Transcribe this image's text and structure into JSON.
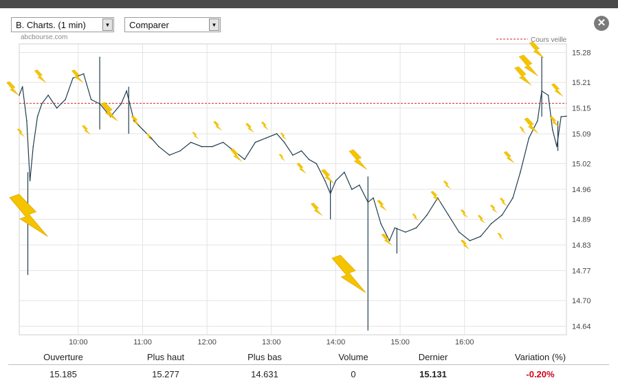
{
  "toolbar": {
    "chart_select_label": "B. Charts. (1 min)",
    "compare_select_label": "Comparer",
    "arrow_glyph": "▼",
    "close_glyph": "✕"
  },
  "site_label": "abcbourse.com",
  "icons": [
    "chevron-down-icon",
    "close-icon",
    "lightning-icon"
  ],
  "colors": {
    "price_line": "#1f3b4d",
    "prev_close_line": "#c62828",
    "negative": "#d0021b",
    "lightning": "#f5c400"
  },
  "chart_data": {
    "type": "line",
    "title": "",
    "xlabel": "",
    "ylabel": "",
    "x_ticks": [
      "10:00",
      "11:00",
      "12:00",
      "13:00",
      "14:00",
      "15:00",
      "16:00"
    ],
    "y_ticks": [
      15.28,
      15.21,
      15.15,
      15.09,
      15.02,
      14.96,
      14.89,
      14.83,
      14.77,
      14.7,
      14.64
    ],
    "x_range": [
      "09:05",
      "17:35"
    ],
    "y_range": [
      14.62,
      15.3
    ],
    "grid": true,
    "legend": "top-right",
    "prev_close": {
      "label": "Cours veille",
      "value": 15.161
    },
    "series": [
      {
        "values": [
          [
            "09:05",
            15.18
          ],
          [
            "09:08",
            15.2
          ],
          [
            "09:12",
            15.12
          ],
          [
            "09:15",
            14.98
          ],
          [
            "09:18",
            15.06
          ],
          [
            "09:22",
            15.13
          ],
          [
            "09:26",
            15.16
          ],
          [
            "09:32",
            15.18
          ],
          [
            "09:40",
            15.15
          ],
          [
            "09:48",
            15.17
          ],
          [
            "09:55",
            15.22
          ],
          [
            "10:05",
            15.23
          ],
          [
            "10:12",
            15.17
          ],
          [
            "10:20",
            15.16
          ],
          [
            "10:30",
            15.13
          ],
          [
            "10:40",
            15.16
          ],
          [
            "10:45",
            15.19
          ],
          [
            "10:52",
            15.12
          ],
          [
            "11:00",
            15.1
          ],
          [
            "11:08",
            15.08
          ],
          [
            "11:15",
            15.06
          ],
          [
            "11:25",
            15.04
          ],
          [
            "11:35",
            15.05
          ],
          [
            "11:45",
            15.07
          ],
          [
            "11:55",
            15.06
          ],
          [
            "12:05",
            15.06
          ],
          [
            "12:15",
            15.07
          ],
          [
            "12:25",
            15.05
          ],
          [
            "12:35",
            15.03
          ],
          [
            "12:45",
            15.07
          ],
          [
            "12:55",
            15.08
          ],
          [
            "13:05",
            15.09
          ],
          [
            "13:12",
            15.07
          ],
          [
            "13:20",
            15.04
          ],
          [
            "13:28",
            15.05
          ],
          [
            "13:35",
            15.03
          ],
          [
            "13:42",
            15.02
          ],
          [
            "13:50",
            14.98
          ],
          [
            "13:55",
            14.95
          ],
          [
            "14:00",
            14.98
          ],
          [
            "14:08",
            15.0
          ],
          [
            "14:15",
            14.96
          ],
          [
            "14:22",
            14.97
          ],
          [
            "14:30",
            14.93
          ],
          [
            "14:35",
            14.94
          ],
          [
            "14:42",
            14.88
          ],
          [
            "14:50",
            14.84
          ],
          [
            "14:55",
            14.87
          ],
          [
            "15:05",
            14.86
          ],
          [
            "15:15",
            14.87
          ],
          [
            "15:25",
            14.9
          ],
          [
            "15:35",
            14.94
          ],
          [
            "15:45",
            14.9
          ],
          [
            "15:55",
            14.86
          ],
          [
            "16:05",
            14.84
          ],
          [
            "16:15",
            14.85
          ],
          [
            "16:25",
            14.88
          ],
          [
            "16:35",
            14.9
          ],
          [
            "16:45",
            14.94
          ],
          [
            "16:52",
            15.0
          ],
          [
            "17:00",
            15.08
          ],
          [
            "17:08",
            15.12
          ],
          [
            "17:12",
            15.19
          ],
          [
            "17:18",
            15.18
          ],
          [
            "17:22",
            15.1
          ],
          [
            "17:26",
            15.06
          ],
          [
            "17:30",
            15.13
          ],
          [
            "17:35",
            15.131
          ]
        ]
      }
    ],
    "wicks": [
      [
        "09:13",
        14.76,
        15.0
      ],
      [
        "10:20",
        15.1,
        15.27
      ],
      [
        "10:47",
        15.09,
        15.2
      ],
      [
        "13:55",
        14.89,
        14.98
      ],
      [
        "14:30",
        14.63,
        14.99
      ],
      [
        "14:57",
        14.81,
        14.87
      ],
      [
        "17:12",
        15.13,
        15.27
      ],
      [
        "17:27",
        15.05,
        15.12
      ]
    ]
  },
  "stats": {
    "headers": [
      "Ouverture",
      "Plus haut",
      "Plus bas",
      "Volume",
      "Dernier",
      "Variation (%)"
    ],
    "values": [
      "15.185",
      "15.277",
      "14.631",
      "0",
      "15.131",
      "-0.20%"
    ]
  }
}
